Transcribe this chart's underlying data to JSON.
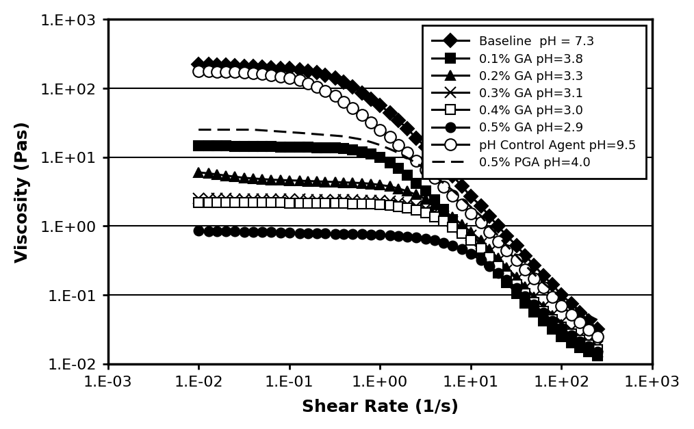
{
  "xlabel": "Shear Rate (1/s)",
  "ylabel": "Viscosity (Pas)",
  "series": [
    {
      "label": "Baseline  pH = 7.3",
      "linestyle": "-",
      "marker": "D",
      "marker_fill": "black",
      "markersize": 10,
      "x": [
        0.01,
        0.013,
        0.016,
        0.02,
        0.025,
        0.032,
        0.04,
        0.05,
        0.063,
        0.08,
        0.1,
        0.13,
        0.16,
        0.2,
        0.25,
        0.32,
        0.4,
        0.5,
        0.63,
        0.8,
        1.0,
        1.3,
        1.6,
        2.0,
        2.5,
        3.2,
        4.0,
        5.0,
        6.3,
        8.0,
        10.0,
        13.0,
        16.0,
        20.0,
        25.0,
        32.0,
        40.0,
        50.0,
        63.0,
        80.0,
        100.0,
        130.0,
        160.0,
        200.0,
        250.0
      ],
      "y": [
        220,
        220,
        218,
        216,
        213,
        210,
        207,
        204,
        200,
        196,
        192,
        186,
        178,
        168,
        155,
        140,
        122,
        104,
        86,
        70,
        56,
        44,
        34,
        26,
        19,
        14,
        10.5,
        7.5,
        5.4,
        3.8,
        2.7,
        1.95,
        1.4,
        1.0,
        0.72,
        0.52,
        0.37,
        0.27,
        0.19,
        0.14,
        0.1,
        0.074,
        0.055,
        0.042,
        0.032
      ]
    },
    {
      "label": "0.1% GA pH=3.8",
      "linestyle": "-",
      "marker": "s",
      "marker_fill": "black",
      "markersize": 10,
      "x": [
        0.01,
        0.013,
        0.016,
        0.02,
        0.025,
        0.032,
        0.04,
        0.05,
        0.063,
        0.08,
        0.1,
        0.13,
        0.16,
        0.2,
        0.25,
        0.32,
        0.4,
        0.5,
        0.63,
        0.8,
        1.0,
        1.3,
        1.6,
        2.0,
        2.5,
        3.2,
        4.0,
        5.0,
        6.3,
        8.0,
        10.0,
        13.0,
        16.0,
        20.0,
        25.0,
        32.0,
        40.0,
        50.0,
        63.0,
        80.0,
        100.0,
        130.0,
        160.0,
        200.0,
        250.0
      ],
      "y": [
        14.5,
        14.5,
        14.5,
        14.5,
        14.4,
        14.4,
        14.3,
        14.2,
        14.2,
        14.1,
        14.0,
        14.0,
        13.9,
        13.8,
        13.7,
        13.5,
        13.2,
        12.7,
        12.0,
        11.0,
        9.8,
        8.3,
        6.8,
        5.5,
        4.2,
        3.2,
        2.4,
        1.75,
        1.25,
        0.88,
        0.62,
        0.43,
        0.3,
        0.21,
        0.15,
        0.105,
        0.076,
        0.056,
        0.042,
        0.032,
        0.025,
        0.02,
        0.017,
        0.015,
        0.013
      ]
    },
    {
      "label": "0.2% GA pH=3.3",
      "linestyle": "-",
      "marker": "^",
      "marker_fill": "black",
      "markersize": 10,
      "x": [
        0.01,
        0.013,
        0.016,
        0.02,
        0.025,
        0.032,
        0.04,
        0.05,
        0.063,
        0.08,
        0.1,
        0.13,
        0.16,
        0.2,
        0.25,
        0.32,
        0.4,
        0.5,
        0.63,
        0.8,
        1.0,
        1.3,
        1.6,
        2.0,
        2.5,
        3.2,
        4.0,
        5.0,
        6.3,
        8.0,
        10.0,
        13.0,
        16.0,
        20.0,
        25.0,
        32.0,
        40.0,
        50.0,
        63.0,
        80.0,
        100.0,
        130.0,
        160.0,
        200.0,
        250.0
      ],
      "y": [
        6.0,
        5.8,
        5.6,
        5.4,
        5.2,
        5.0,
        4.9,
        4.8,
        4.7,
        4.65,
        4.6,
        4.55,
        4.5,
        4.45,
        4.4,
        4.35,
        4.3,
        4.25,
        4.2,
        4.1,
        3.95,
        3.75,
        3.5,
        3.2,
        2.85,
        2.45,
        2.05,
        1.7,
        1.35,
        1.05,
        0.82,
        0.62,
        0.46,
        0.34,
        0.25,
        0.18,
        0.13,
        0.094,
        0.068,
        0.05,
        0.037,
        0.028,
        0.022,
        0.018,
        0.015
      ]
    },
    {
      "label": "0.3% GA pH=3.1",
      "linestyle": "-",
      "marker": "x",
      "marker_fill": "black",
      "markersize": 12,
      "x": [
        0.01,
        0.013,
        0.016,
        0.02,
        0.025,
        0.032,
        0.04,
        0.05,
        0.063,
        0.08,
        0.1,
        0.13,
        0.16,
        0.2,
        0.25,
        0.32,
        0.4,
        0.5,
        0.63,
        0.8,
        1.0,
        1.3,
        1.6,
        2.0,
        2.5,
        3.2,
        4.0,
        5.0,
        6.3,
        8.0,
        10.0,
        13.0,
        16.0,
        20.0,
        25.0,
        32.0,
        40.0,
        50.0,
        63.0,
        80.0,
        100.0,
        130.0,
        160.0,
        200.0,
        250.0
      ],
      "y": [
        2.5,
        2.5,
        2.5,
        2.5,
        2.48,
        2.47,
        2.46,
        2.45,
        2.45,
        2.44,
        2.43,
        2.43,
        2.42,
        2.42,
        2.41,
        2.4,
        2.39,
        2.38,
        2.37,
        2.35,
        2.32,
        2.27,
        2.2,
        2.1,
        1.97,
        1.8,
        1.6,
        1.38,
        1.15,
        0.92,
        0.73,
        0.55,
        0.42,
        0.31,
        0.23,
        0.17,
        0.125,
        0.093,
        0.068,
        0.052,
        0.04,
        0.031,
        0.025,
        0.021,
        0.018
      ]
    },
    {
      "label": "0.4% GA pH=3.0",
      "linestyle": "-",
      "marker": "s",
      "marker_fill": "white",
      "markersize": 10,
      "x": [
        0.01,
        0.013,
        0.016,
        0.02,
        0.025,
        0.032,
        0.04,
        0.05,
        0.063,
        0.08,
        0.1,
        0.13,
        0.16,
        0.2,
        0.25,
        0.32,
        0.4,
        0.5,
        0.63,
        0.8,
        1.0,
        1.3,
        1.6,
        2.0,
        2.5,
        3.2,
        4.0,
        5.0,
        6.3,
        8.0,
        10.0,
        13.0,
        16.0,
        20.0,
        25.0,
        32.0,
        40.0,
        50.0,
        63.0,
        80.0,
        100.0,
        130.0,
        160.0,
        200.0,
        250.0
      ],
      "y": [
        2.2,
        2.2,
        2.2,
        2.2,
        2.19,
        2.19,
        2.18,
        2.18,
        2.17,
        2.17,
        2.16,
        2.16,
        2.15,
        2.15,
        2.14,
        2.13,
        2.12,
        2.11,
        2.1,
        2.08,
        2.05,
        2.0,
        1.93,
        1.83,
        1.7,
        1.55,
        1.37,
        1.17,
        0.97,
        0.78,
        0.62,
        0.47,
        0.35,
        0.26,
        0.19,
        0.14,
        0.105,
        0.078,
        0.058,
        0.044,
        0.034,
        0.027,
        0.022,
        0.019,
        0.016
      ]
    },
    {
      "label": "0.5% GA pH=2.9",
      "linestyle": "-",
      "marker": "o",
      "marker_fill": "black",
      "markersize": 10,
      "x": [
        0.01,
        0.013,
        0.016,
        0.02,
        0.025,
        0.032,
        0.04,
        0.05,
        0.063,
        0.08,
        0.1,
        0.13,
        0.16,
        0.2,
        0.25,
        0.32,
        0.4,
        0.5,
        0.63,
        0.8,
        1.0,
        1.3,
        1.6,
        2.0,
        2.5,
        3.2,
        4.0,
        5.0,
        6.3,
        8.0,
        10.0,
        13.0,
        16.0,
        20.0,
        25.0,
        32.0,
        40.0,
        50.0,
        63.0,
        80.0,
        100.0,
        130.0,
        160.0,
        200.0,
        250.0
      ],
      "y": [
        0.85,
        0.84,
        0.84,
        0.83,
        0.83,
        0.82,
        0.82,
        0.81,
        0.81,
        0.8,
        0.8,
        0.79,
        0.79,
        0.78,
        0.78,
        0.77,
        0.77,
        0.76,
        0.76,
        0.75,
        0.74,
        0.73,
        0.72,
        0.7,
        0.68,
        0.65,
        0.62,
        0.57,
        0.52,
        0.46,
        0.39,
        0.32,
        0.26,
        0.21,
        0.165,
        0.125,
        0.096,
        0.073,
        0.055,
        0.042,
        0.033,
        0.026,
        0.021,
        0.018,
        0.015
      ]
    },
    {
      "label": "pH Control Agent pH=9.5",
      "linestyle": "-",
      "marker": "o",
      "marker_fill": "white",
      "markersize": 12,
      "x": [
        0.01,
        0.013,
        0.016,
        0.02,
        0.025,
        0.032,
        0.04,
        0.05,
        0.063,
        0.08,
        0.1,
        0.13,
        0.16,
        0.2,
        0.25,
        0.32,
        0.4,
        0.5,
        0.63,
        0.8,
        1.0,
        1.3,
        1.6,
        2.0,
        2.5,
        3.2,
        4.0,
        5.0,
        6.3,
        8.0,
        10.0,
        13.0,
        16.0,
        20.0,
        25.0,
        32.0,
        40.0,
        50.0,
        63.0,
        80.0,
        100.0,
        130.0,
        160.0,
        200.0,
        250.0
      ],
      "y": [
        175,
        175,
        174,
        173,
        171,
        168,
        165,
        160,
        155,
        148,
        140,
        130,
        118,
        105,
        91,
        77,
        63,
        51,
        41,
        32,
        25,
        19.5,
        15,
        11.5,
        8.8,
        6.6,
        5.0,
        3.7,
        2.75,
        2.05,
        1.52,
        1.12,
        0.82,
        0.6,
        0.44,
        0.32,
        0.235,
        0.172,
        0.127,
        0.094,
        0.07,
        0.052,
        0.04,
        0.031,
        0.025
      ]
    },
    {
      "label": "0.5% PGA pH=4.0",
      "linestyle": "--",
      "marker": "None",
      "marker_fill": "black",
      "markersize": 0,
      "x": [
        0.01,
        0.013,
        0.016,
        0.02,
        0.025,
        0.032,
        0.04,
        0.05,
        0.063,
        0.08,
        0.1,
        0.13,
        0.16,
        0.2,
        0.25,
        0.32,
        0.4,
        0.5,
        0.63,
        0.8,
        1.0,
        1.3,
        1.6,
        2.0,
        2.5,
        3.2,
        4.0,
        5.0,
        6.3,
        8.0,
        10.0,
        13.0,
        16.0,
        20.0,
        25.0,
        32.0,
        40.0,
        50.0,
        63.0,
        80.0,
        100.0,
        130.0,
        160.0,
        200.0,
        250.0
      ],
      "y": [
        25,
        25,
        25,
        25,
        25,
        25,
        25,
        24.5,
        24,
        23.5,
        23,
        22.5,
        22,
        21.5,
        21,
        20.5,
        20,
        19,
        18,
        16.5,
        15,
        13,
        11.5,
        9.8,
        8.2,
        6.7,
        5.4,
        4.2,
        3.3,
        2.5,
        1.9,
        1.4,
        1.0,
        0.73,
        0.52,
        0.37,
        0.27,
        0.2,
        0.15,
        0.115,
        0.09,
        0.072,
        0.06,
        0.05,
        0.043
      ]
    }
  ]
}
